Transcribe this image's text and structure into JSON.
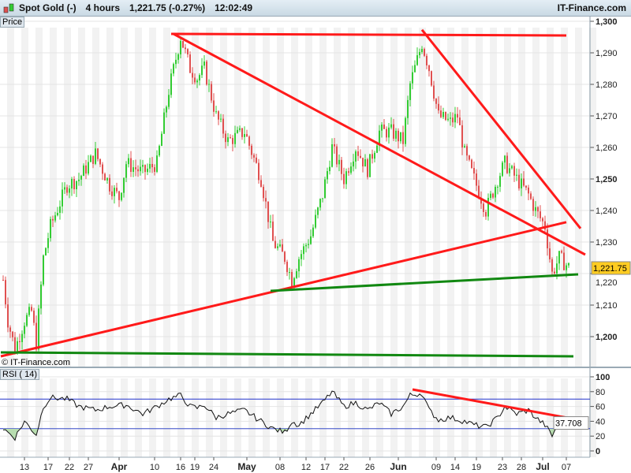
{
  "header": {
    "instrument": "Spot Gold (-)",
    "timeframe": "4 hours",
    "last_change": "1,221.75 (-0.27%)",
    "time": "12:02:49",
    "brand": "IT-Finance.com"
  },
  "price_panel_label": "Price",
  "rsi_panel_label": "RSI ( 14)",
  "copyright": "© IT-Finance.com",
  "colors": {
    "up": "#33cc33",
    "down": "#e05050",
    "trend_red": "#ff1a1a",
    "trend_green": "#118811",
    "rsi_level": "#2233cc",
    "last_badge": "#ffcc22"
  },
  "chart_data": [
    {
      "type": "candlestick",
      "title": "Spot Gold 4 hours",
      "ylim": [
        1190,
        1300
      ],
      "y_ticks": [
        "1,300",
        "1,290",
        "1,280",
        "1,270",
        "1,260",
        "1,250",
        "1,240",
        "1,230",
        "1,220",
        "1,210",
        "1,200"
      ],
      "y_tick_values": [
        1300,
        1290,
        1280,
        1270,
        1260,
        1250,
        1240,
        1230,
        1220,
        1210,
        1200
      ],
      "last_value": "1,221.75",
      "path_waypoints": [
        [
          0,
          1218
        ],
        [
          2,
          1205
        ],
        [
          5,
          1196
        ],
        [
          9,
          1205
        ],
        [
          12,
          1208
        ],
        [
          14,
          1198
        ],
        [
          17,
          1225
        ],
        [
          20,
          1235
        ],
        [
          27,
          1248
        ],
        [
          32,
          1250
        ],
        [
          39,
          1258
        ],
        [
          45,
          1248
        ],
        [
          49,
          1244
        ],
        [
          52,
          1255
        ],
        [
          59,
          1252
        ],
        [
          65,
          1255
        ],
        [
          70,
          1278
        ],
        [
          75,
          1295
        ],
        [
          79,
          1285
        ],
        [
          82,
          1282
        ],
        [
          85,
          1285
        ],
        [
          90,
          1270
        ],
        [
          95,
          1262
        ],
        [
          102,
          1265
        ],
        [
          109,
          1250
        ],
        [
          114,
          1230
        ],
        [
          119,
          1225
        ],
        [
          122,
          1218
        ],
        [
          125,
          1225
        ],
        [
          130,
          1232
        ],
        [
          135,
          1245
        ],
        [
          139,
          1260
        ],
        [
          144,
          1250
        ],
        [
          149,
          1260
        ],
        [
          154,
          1253
        ],
        [
          159,
          1265
        ],
        [
          164,
          1265
        ],
        [
          169,
          1262
        ],
        [
          172,
          1280
        ],
        [
          177,
          1293
        ],
        [
          180,
          1285
        ],
        [
          184,
          1270
        ],
        [
          189,
          1268
        ],
        [
          192,
          1270
        ],
        [
          195,
          1258
        ],
        [
          199,
          1250
        ],
        [
          204,
          1240
        ],
        [
          209,
          1250
        ],
        [
          212,
          1255
        ],
        [
          217,
          1250
        ],
        [
          222,
          1245
        ],
        [
          225,
          1240
        ],
        [
          229,
          1235
        ],
        [
          232,
          1220
        ],
        [
          235,
          1225
        ],
        [
          239,
          1222
        ]
      ],
      "trendlines": [
        {
          "color": "red",
          "from": [
            71,
            1296
          ],
          "to": [
            238,
            1295.5
          ]
        },
        {
          "color": "red",
          "from": [
            72,
            1296
          ],
          "to": [
            246,
            1226
          ]
        },
        {
          "color": "red",
          "from": [
            177,
            1297.3
          ],
          "to": [
            244,
            1234.3
          ]
        },
        {
          "color": "red",
          "from": [
            -1,
            1193.75
          ],
          "to": [
            238,
            1236.3
          ]
        },
        {
          "color": "green",
          "from": [
            113,
            1214.5
          ],
          "to": [
            243,
            1219.75
          ]
        },
        {
          "color": "green",
          "from": [
            -1,
            1195
          ],
          "to": [
            241,
            1193.75
          ]
        }
      ]
    },
    {
      "type": "line",
      "title": "RSI ( 14)",
      "ylim": [
        0,
        100
      ],
      "levels": [
        70,
        30
      ],
      "y_ticks": [
        "100",
        "80",
        "60",
        "40",
        "20",
        "0"
      ],
      "y_tick_values": [
        100,
        80,
        60,
        40,
        20,
        0
      ],
      "last_value": "37.708",
      "path_waypoints": [
        [
          0,
          30
        ],
        [
          5,
          18
        ],
        [
          9,
          40
        ],
        [
          14,
          22
        ],
        [
          17,
          60
        ],
        [
          20,
          72
        ],
        [
          27,
          70
        ],
        [
          32,
          60
        ],
        [
          39,
          55
        ],
        [
          45,
          60
        ],
        [
          52,
          62
        ],
        [
          59,
          50
        ],
        [
          65,
          60
        ],
        [
          70,
          70
        ],
        [
          75,
          75
        ],
        [
          79,
          60
        ],
        [
          82,
          58
        ],
        [
          85,
          62
        ],
        [
          90,
          45
        ],
        [
          95,
          50
        ],
        [
          102,
          55
        ],
        [
          109,
          40
        ],
        [
          114,
          30
        ],
        [
          119,
          25
        ],
        [
          122,
          40
        ],
        [
          125,
          35
        ],
        [
          130,
          50
        ],
        [
          135,
          65
        ],
        [
          139,
          80
        ],
        [
          144,
          60
        ],
        [
          149,
          65
        ],
        [
          154,
          55
        ],
        [
          159,
          65
        ],
        [
          164,
          50
        ],
        [
          169,
          60
        ],
        [
          172,
          75
        ],
        [
          177,
          78
        ],
        [
          180,
          55
        ],
        [
          184,
          42
        ],
        [
          189,
          45
        ],
        [
          195,
          40
        ],
        [
          199,
          35
        ],
        [
          204,
          32
        ],
        [
          209,
          45
        ],
        [
          212,
          60
        ],
        [
          217,
          50
        ],
        [
          222,
          55
        ],
        [
          225,
          45
        ],
        [
          229,
          35
        ],
        [
          232,
          20
        ],
        [
          235,
          40
        ],
        [
          239,
          38
        ]
      ],
      "trendlines": [
        {
          "color": "red",
          "from": [
            173,
            83
          ],
          "to": [
            244,
            41.5
          ]
        }
      ]
    }
  ],
  "x_axis": {
    "labels": [
      {
        "t": "13",
        "i": 9,
        "b": false
      },
      {
        "t": "17",
        "i": 19,
        "b": false
      },
      {
        "t": "22",
        "i": 28,
        "b": false
      },
      {
        "t": "27",
        "i": 36,
        "b": false
      },
      {
        "t": "Apr",
        "i": 49,
        "b": true
      },
      {
        "t": "10",
        "i": 64,
        "b": false
      },
      {
        "t": "16",
        "i": 75,
        "b": false
      },
      {
        "t": "19",
        "i": 81,
        "b": false
      },
      {
        "t": "24",
        "i": 89,
        "b": false
      },
      {
        "t": "May",
        "i": 103,
        "b": true
      },
      {
        "t": "08",
        "i": 117,
        "b": false
      },
      {
        "t": "12",
        "i": 128,
        "b": false
      },
      {
        "t": "17",
        "i": 136,
        "b": false
      },
      {
        "t": "22",
        "i": 144,
        "b": false
      },
      {
        "t": "26",
        "i": 155,
        "b": false
      },
      {
        "t": "Jun",
        "i": 167,
        "b": true
      },
      {
        "t": "09",
        "i": 183,
        "b": false
      },
      {
        "t": "14",
        "i": 191,
        "b": false
      },
      {
        "t": "19",
        "i": 200,
        "b": false
      },
      {
        "t": "23",
        "i": 211,
        "b": false
      },
      {
        "t": "28",
        "i": 219,
        "b": false
      },
      {
        "t": "Jul",
        "i": 228,
        "b": true
      },
      {
        "t": "07",
        "i": 238,
        "b": false
      }
    ]
  }
}
